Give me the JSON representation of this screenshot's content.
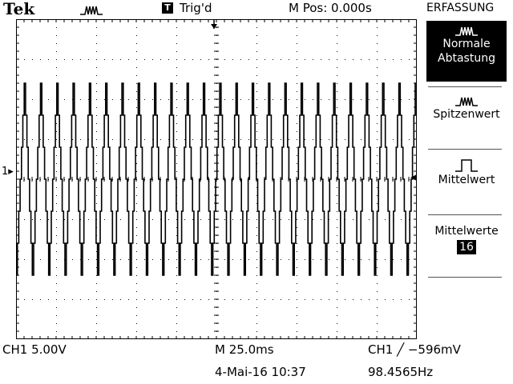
{
  "header": {
    "brand": "Tek",
    "acquire_icon": "pulse-icon",
    "trigger_box": "T",
    "trigger_status": "Trig'd",
    "horizontal_position": "M Pos: 0.000s"
  },
  "menu": {
    "title": "ERFASSUNG",
    "items": [
      {
        "label_line1": "Normale",
        "label_line2": "Abtastung",
        "icon": "sample-pulse-icon",
        "selected": true
      },
      {
        "label": "Spitzenwert",
        "icon": "peak-detect-icon"
      },
      {
        "label": "Mittelwert",
        "icon": "square-pulse-icon"
      },
      {
        "label": "Mittelwerte",
        "value": "16"
      }
    ]
  },
  "channel_marker": "1",
  "footer": {
    "ch1_scale": "CH1  5.00V",
    "timebase": "M 25.0ms",
    "trigger": "CH1 ╱ −596mV",
    "date": "4-Mai-16 10:37",
    "frequency": "98.4565Hz"
  },
  "colors": {
    "background": "#ffffff",
    "trace": "#000000",
    "grid": "#000000"
  },
  "waveform": {
    "cycles_on_screen": 24.6,
    "high_div": 2.4,
    "low_div": -2.4
  }
}
